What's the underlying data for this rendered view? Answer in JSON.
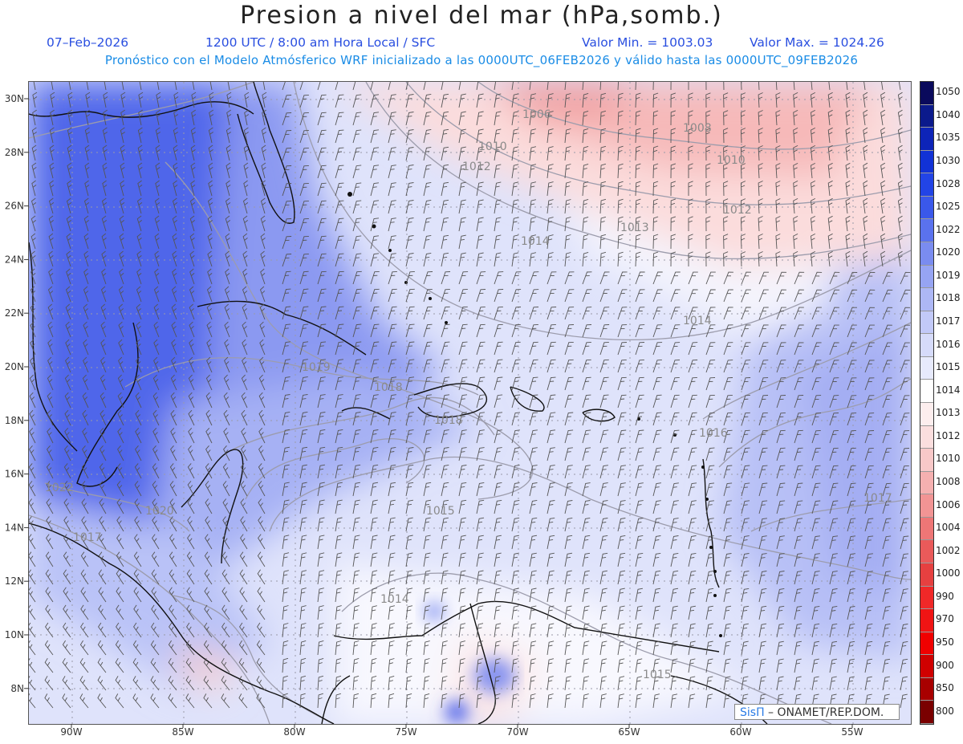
{
  "title": "Presion a nivel del mar (hPa,somb.)",
  "date": "07–Feb–2026",
  "time_info": "1200 UTC / 8:00 am Hora Local / SFC",
  "min_label": "Valor Min. = 1003.03",
  "max_label": "Valor Max. = 1024.26",
  "forecast_note": "Pronóstico con el Modelo Atmósferico WRF inicializado a las 0000UTC_06FEB2026 y válido hasta las  0000UTC_09FEB2026",
  "credit": {
    "brand": "SisΠ",
    "text": " – ONAMET/REP.DOM."
  },
  "lat_labels": [
    "30N",
    "28N",
    "26N",
    "24N",
    "22N",
    "20N",
    "18N",
    "16N",
    "14N",
    "12N",
    "10N",
    "8N"
  ],
  "lon_labels": [
    "90W",
    "85W",
    "80W",
    "75W",
    "70W",
    "65W",
    "60W",
    "55W"
  ],
  "isobar_labels": [
    "1006",
    "1008",
    "1010",
    "1010",
    "1012",
    "1012",
    "1013",
    "1014",
    "1014",
    "1016",
    "1017",
    "1018",
    "1019",
    "1018",
    "1020",
    "1022",
    "1017",
    "1015",
    "1014",
    "1015"
  ],
  "legend": [
    {
      "v": "1050",
      "c": "#0a0a5c"
    },
    {
      "v": "1040",
      "c": "#0b1a8c"
    },
    {
      "v": "1035",
      "c": "#0d24b8"
    },
    {
      "v": "1030",
      "c": "#1232d6"
    },
    {
      "v": "1028",
      "c": "#2244e6"
    },
    {
      "v": "1025",
      "c": "#3a58ea"
    },
    {
      "v": "1022",
      "c": "#5a72ee"
    },
    {
      "v": "1020",
      "c": "#7a8cf0"
    },
    {
      "v": "1019",
      "c": "#96a4f3"
    },
    {
      "v": "1018",
      "c": "#adb7f5"
    },
    {
      "v": "1017",
      "c": "#c2c9f8"
    },
    {
      "v": "1016",
      "c": "#d6dbfa"
    },
    {
      "v": "1015",
      "c": "#e7eafc"
    },
    {
      "v": "1014",
      "c": "#ffffff"
    },
    {
      "v": "1013",
      "c": "#fdeeee"
    },
    {
      "v": "1012",
      "c": "#fbdede"
    },
    {
      "v": "1010",
      "c": "#f8c8c8"
    },
    {
      "v": "1008",
      "c": "#f5b0b0"
    },
    {
      "v": "1006",
      "c": "#f29494"
    },
    {
      "v": "1004",
      "c": "#ee7676"
    },
    {
      "v": "1002",
      "c": "#ea5a5a"
    },
    {
      "v": "1000",
      "c": "#e64040"
    },
    {
      "v": "990",
      "c": "#f02828"
    },
    {
      "v": "970",
      "c": "#f01414"
    },
    {
      "v": "950",
      "c": "#f00000"
    },
    {
      "v": "900",
      "c": "#d00000"
    },
    {
      "v": "850",
      "c": "#a80000"
    },
    {
      "v": "800",
      "c": "#7a0000"
    }
  ]
}
